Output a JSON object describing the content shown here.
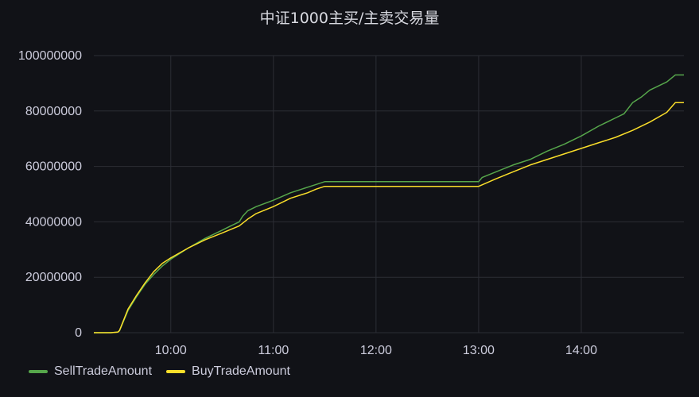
{
  "chart_data": {
    "type": "line",
    "title": "中证1000主买/主卖交易量",
    "xlabel": "",
    "ylabel": "",
    "x_domain": [
      "09:15",
      "15:00"
    ],
    "ylim": [
      0,
      100000000
    ],
    "y_ticks": [
      {
        "value": 0,
        "label": "0"
      },
      {
        "value": 20000000,
        "label": "20000000"
      },
      {
        "value": 40000000,
        "label": "40000000"
      },
      {
        "value": 60000000,
        "label": "60000000"
      },
      {
        "value": 80000000,
        "label": "80000000"
      },
      {
        "value": 100000000,
        "label": "100000000"
      }
    ],
    "x_ticks": [
      {
        "value": "10:00",
        "label": "10:00"
      },
      {
        "value": "11:00",
        "label": "11:00"
      },
      {
        "value": "12:00",
        "label": "12:00"
      },
      {
        "value": "13:00",
        "label": "13:00"
      },
      {
        "value": "14:00",
        "label": "14:00"
      }
    ],
    "grid": true,
    "legend_position": "bottom-left",
    "series": [
      {
        "name": "SellTradeAmount",
        "color": "#56a64b",
        "points": [
          [
            "09:15",
            0
          ],
          [
            "09:25",
            0
          ],
          [
            "09:29",
            200000
          ],
          [
            "09:30",
            700000
          ],
          [
            "09:35",
            8000000
          ],
          [
            "09:40",
            13000000
          ],
          [
            "09:45",
            17500000
          ],
          [
            "09:50",
            21000000
          ],
          [
            "09:55",
            24000000
          ],
          [
            "10:00",
            26500000
          ],
          [
            "10:10",
            30500000
          ],
          [
            "10:20",
            34000000
          ],
          [
            "10:30",
            37000000
          ],
          [
            "10:35",
            38500000
          ],
          [
            "10:40",
            40000000
          ],
          [
            "10:42",
            42000000
          ],
          [
            "10:45",
            44000000
          ],
          [
            "10:50",
            45500000
          ],
          [
            "11:00",
            47800000
          ],
          [
            "11:10",
            50500000
          ],
          [
            "11:20",
            52500000
          ],
          [
            "11:25",
            53500000
          ],
          [
            "11:30",
            54500000
          ],
          [
            "13:00",
            54500000
          ],
          [
            "13:02",
            56000000
          ],
          [
            "13:10",
            58000000
          ],
          [
            "13:20",
            60500000
          ],
          [
            "13:30",
            62500000
          ],
          [
            "13:40",
            65500000
          ],
          [
            "13:50",
            68000000
          ],
          [
            "14:00",
            71000000
          ],
          [
            "14:10",
            74500000
          ],
          [
            "14:20",
            77500000
          ],
          [
            "14:25",
            79000000
          ],
          [
            "14:30",
            83000000
          ],
          [
            "14:35",
            85000000
          ],
          [
            "14:40",
            87500000
          ],
          [
            "14:50",
            90500000
          ],
          [
            "14:55",
            93000000
          ],
          [
            "15:00",
            93000000
          ]
        ]
      },
      {
        "name": "BuyTradeAmount",
        "color": "#fade2a",
        "points": [
          [
            "09:15",
            0
          ],
          [
            "09:25",
            0
          ],
          [
            "09:29",
            200000
          ],
          [
            "09:30",
            800000
          ],
          [
            "09:35",
            8500000
          ],
          [
            "09:40",
            13500000
          ],
          [
            "09:45",
            18000000
          ],
          [
            "09:50",
            22000000
          ],
          [
            "09:55",
            25000000
          ],
          [
            "10:00",
            27000000
          ],
          [
            "10:10",
            30500000
          ],
          [
            "10:20",
            33500000
          ],
          [
            "10:30",
            36000000
          ],
          [
            "10:40",
            38500000
          ],
          [
            "10:45",
            41000000
          ],
          [
            "10:50",
            43000000
          ],
          [
            "11:00",
            45500000
          ],
          [
            "11:10",
            48500000
          ],
          [
            "11:20",
            50500000
          ],
          [
            "11:25",
            51800000
          ],
          [
            "11:30",
            52800000
          ],
          [
            "13:00",
            52800000
          ],
          [
            "13:10",
            55500000
          ],
          [
            "13:20",
            58000000
          ],
          [
            "13:30",
            60500000
          ],
          [
            "13:40",
            62500000
          ],
          [
            "13:50",
            64500000
          ],
          [
            "14:00",
            66500000
          ],
          [
            "14:10",
            68500000
          ],
          [
            "14:20",
            70500000
          ],
          [
            "14:30",
            73000000
          ],
          [
            "14:40",
            76000000
          ],
          [
            "14:50",
            79500000
          ],
          [
            "14:55",
            83000000
          ],
          [
            "15:00",
            83000000
          ]
        ]
      }
    ]
  }
}
